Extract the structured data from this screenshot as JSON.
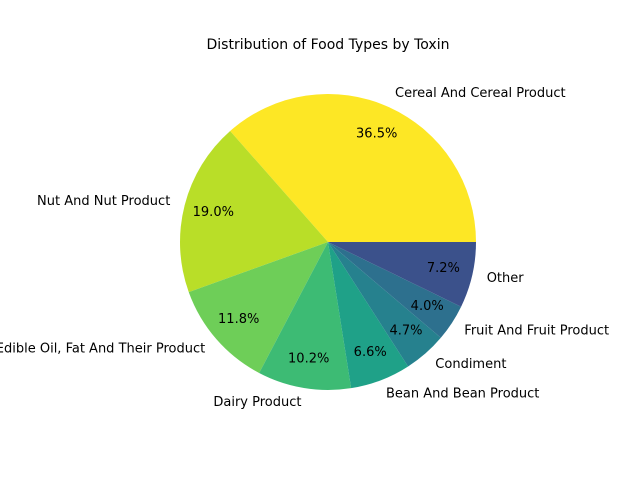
{
  "chart_data": {
    "type": "pie",
    "title": "Distribution of Food Types by Toxin",
    "start_angle_deg": 0,
    "direction": "counterclockwise",
    "slices": [
      {
        "label": "Cereal And Cereal Product",
        "value": 36.5,
        "pct_label": "36.5%",
        "color": "#fde725"
      },
      {
        "label": "Nut And Nut Product",
        "value": 19.0,
        "pct_label": "19.0%",
        "color": "#b9de28"
      },
      {
        "label": "Edible Oil, Fat And Their Product",
        "value": 11.8,
        "pct_label": "11.8%",
        "color": "#6ece58"
      },
      {
        "label": "Dairy Product",
        "value": 10.2,
        "pct_label": "10.2%",
        "color": "#3dbb74"
      },
      {
        "label": "Bean And Bean Product",
        "value": 6.6,
        "pct_label": "6.6%",
        "color": "#1fa188"
      },
      {
        "label": "Condiment",
        "value": 4.7,
        "pct_label": "4.7%",
        "color": "#26818e"
      },
      {
        "label": "Fruit And Fruit Product",
        "value": 4.0,
        "pct_label": "4.0%",
        "color": "#2d708e"
      },
      {
        "label": "Other",
        "value": 7.2,
        "pct_label": "7.2%",
        "color": "#3b518b"
      }
    ]
  }
}
